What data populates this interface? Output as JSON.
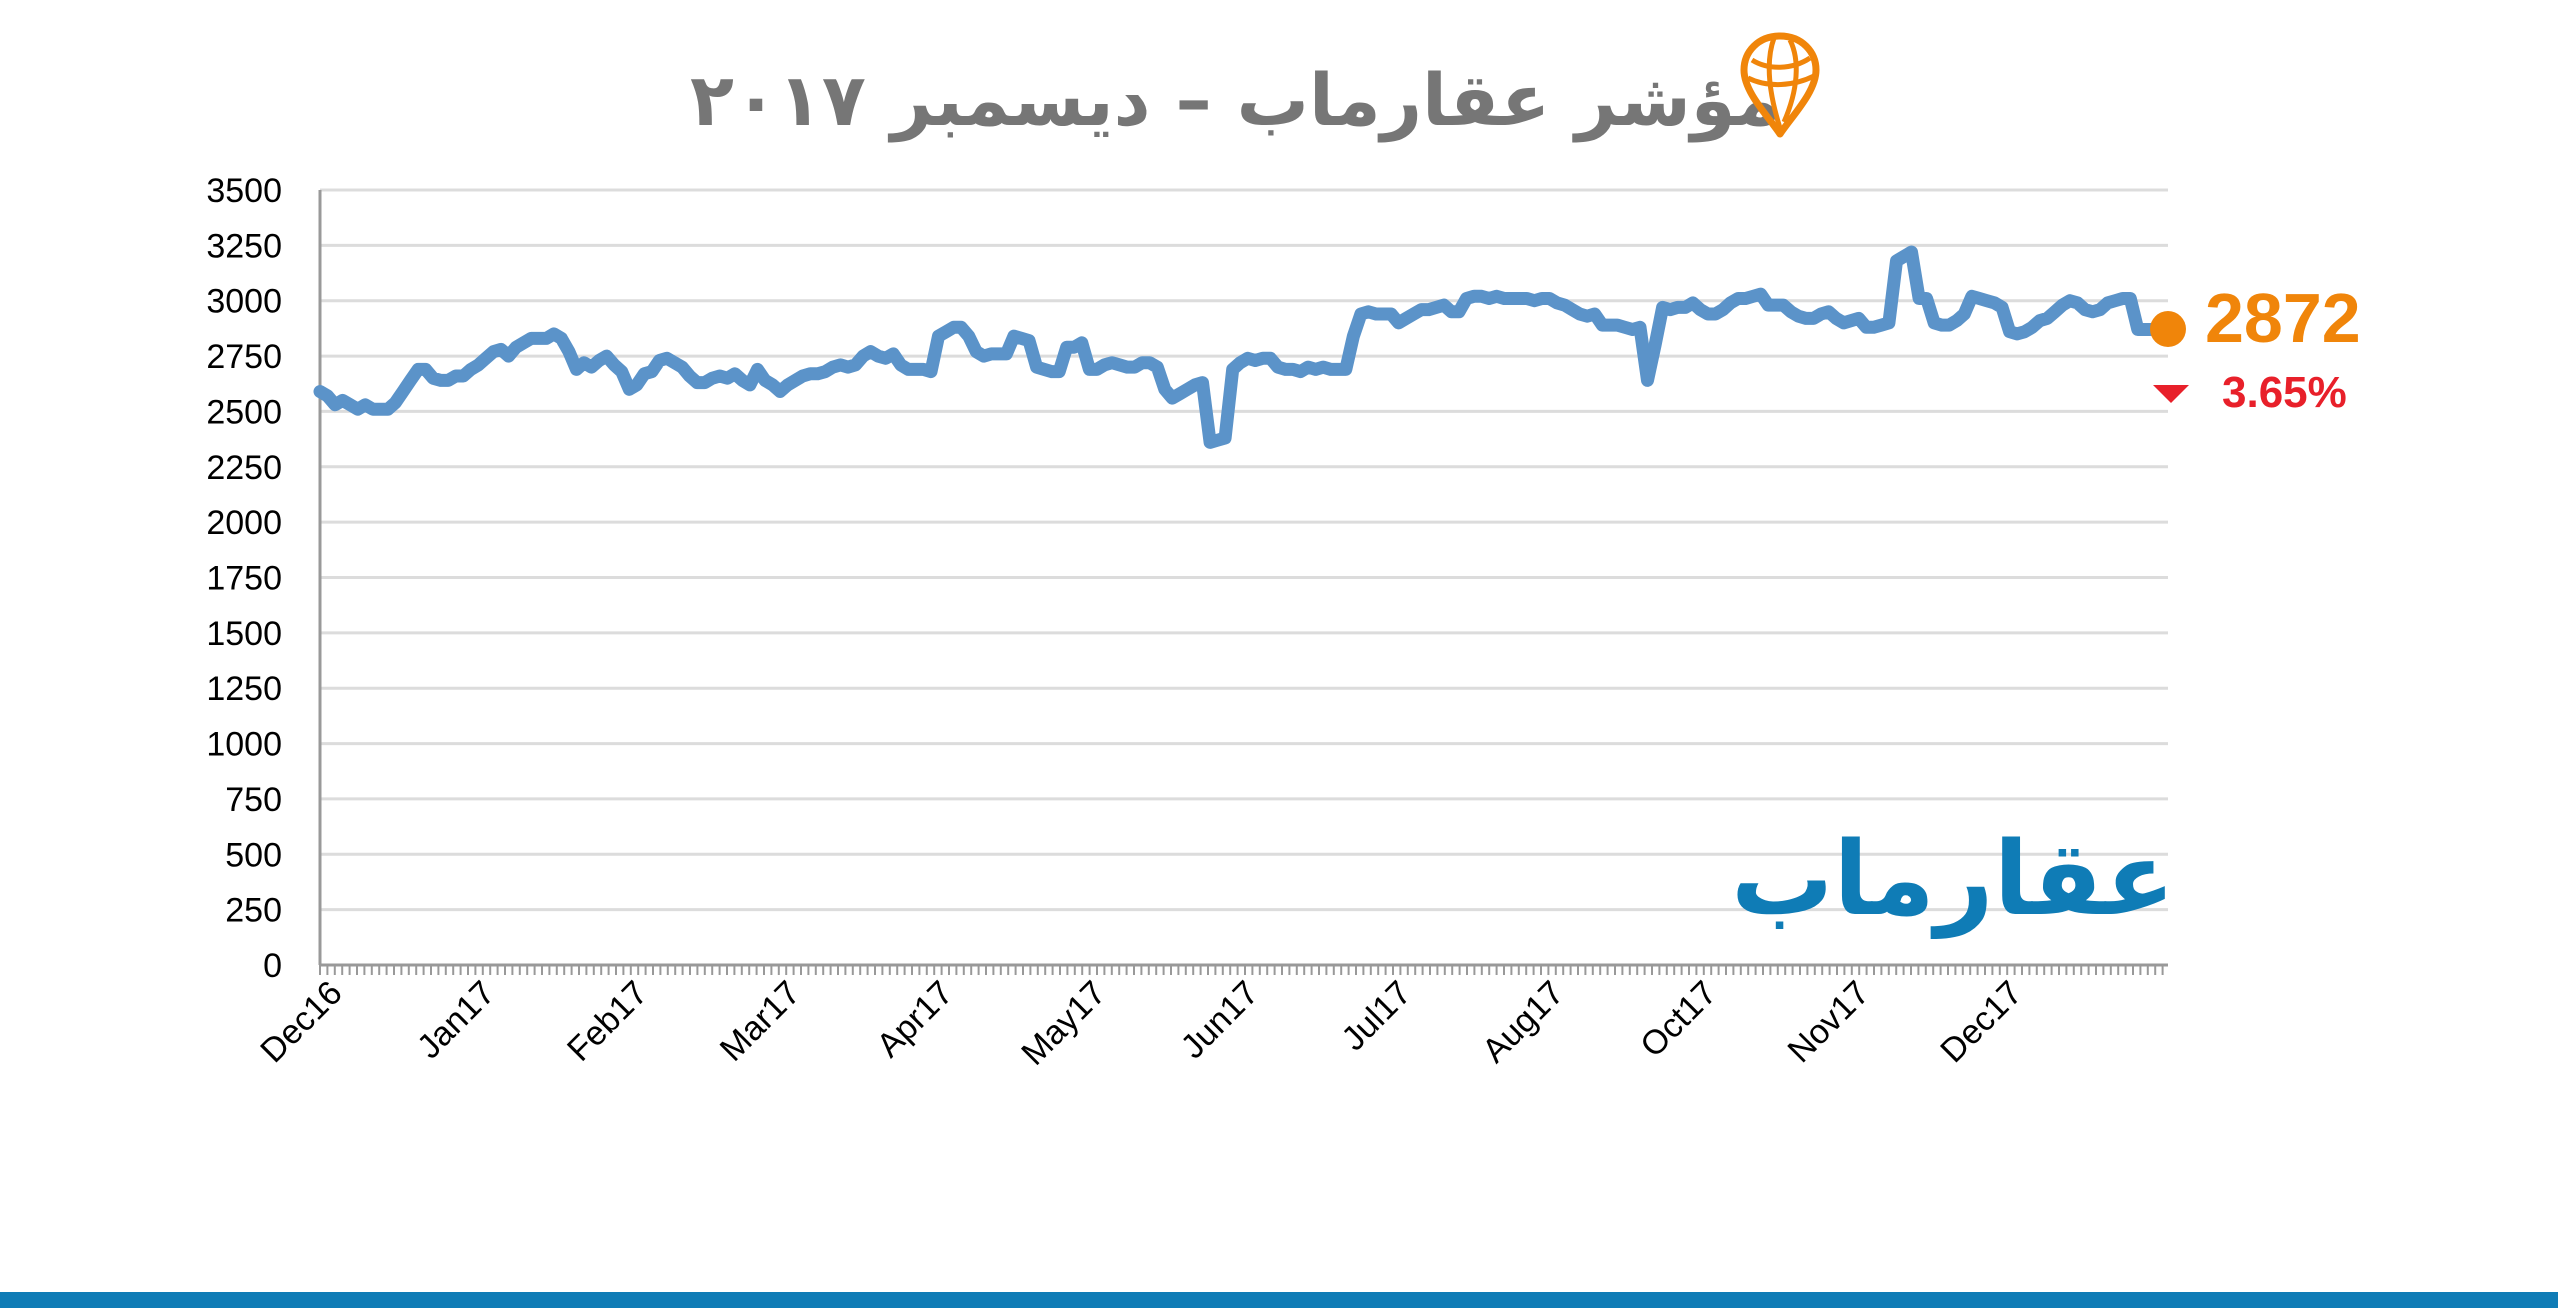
{
  "chart_data": {
    "type": "line",
    "title": "مؤشر عقارماب – ديسمبر ٢٠١٧",
    "xlabel": "",
    "ylabel": "",
    "ylim": [
      0,
      3500
    ],
    "yticks": [
      0,
      250,
      500,
      750,
      1000,
      1250,
      1500,
      1750,
      2000,
      2250,
      2500,
      2750,
      3000,
      3250,
      3500
    ],
    "xtick_labels": [
      "Dec16",
      "Jan17",
      "Feb17",
      "Mar17",
      "Apr17",
      "May17",
      "Jun17",
      "Jul17",
      "Aug17",
      "Oct17",
      "Nov17",
      "Dec17"
    ],
    "grid": true,
    "line_color": "#5b93c9",
    "series": [
      {
        "values": [
          2590,
          2570,
          2530,
          2550,
          2530,
          2510,
          2530,
          2510,
          2510,
          2510,
          2540,
          2590,
          2640,
          2690,
          2690,
          2650,
          2640,
          2640,
          2660,
          2660,
          2690,
          2710,
          2740,
          2770,
          2780,
          2750,
          2790,
          2810,
          2830,
          2830,
          2830,
          2850,
          2830,
          2770,
          2690,
          2720,
          2700,
          2730,
          2750,
          2710,
          2680,
          2600,
          2620,
          2670,
          2680,
          2730,
          2740,
          2720,
          2700,
          2660,
          2630,
          2630,
          2650,
          2660,
          2650,
          2670,
          2640,
          2620,
          2690,
          2640,
          2620,
          2590,
          2620,
          2640,
          2660,
          2670,
          2670,
          2680,
          2700,
          2710,
          2700,
          2710,
          2750,
          2770,
          2750,
          2740,
          2760,
          2710,
          2690,
          2690,
          2690,
          2680,
          2840,
          2860,
          2880,
          2880,
          2840,
          2770,
          2750,
          2760,
          2760,
          2760,
          2840,
          2830,
          2820,
          2700,
          2690,
          2680,
          2680,
          2790,
          2790,
          2810,
          2690,
          2690,
          2710,
          2720,
          2710,
          2700,
          2700,
          2720,
          2720,
          2700,
          2600,
          2560,
          2580,
          2600,
          2620,
          2630,
          2360,
          2370,
          2380,
          2690,
          2720,
          2740,
          2730,
          2740,
          2740,
          2700,
          2690,
          2690,
          2680,
          2700,
          2690,
          2700,
          2690,
          2690,
          2690,
          2840,
          2940,
          2950,
          2940,
          2940,
          2940,
          2900,
          2920,
          2940,
          2960,
          2960,
          2970,
          2980,
          2950,
          2950,
          3010,
          3020,
          3020,
          3010,
          3020,
          3010,
          3010,
          3010,
          3010,
          3000,
          3010,
          3010,
          2990,
          2980,
          2960,
          2940,
          2930,
          2940,
          2890,
          2890,
          2890,
          2880,
          2870,
          2880,
          2640,
          2800,
          2970,
          2960,
          2970,
          2970,
          2990,
          2960,
          2940,
          2940,
          2960,
          2990,
          3010,
          3010,
          3020,
          3030,
          2980,
          2980,
          2980,
          2950,
          2930,
          2920,
          2920,
          2940,
          2950,
          2920,
          2900,
          2910,
          2920,
          2880,
          2880,
          2890,
          2900,
          3180,
          3200,
          3220,
          3010,
          3010,
          2900,
          2890,
          2890,
          2910,
          2940,
          3020,
          3010,
          3000,
          2990,
          2970,
          2860,
          2850,
          2860,
          2880,
          2910,
          2920,
          2950,
          2980,
          3000,
          2990,
          2960,
          2950,
          2960,
          2990,
          3000,
          3010,
          3010,
          2870,
          2870,
          2870,
          2870,
          2872
        ]
      }
    ],
    "annotations": {
      "last_value": "2872",
      "last_value_color": "#f0850a",
      "change": "3.65%",
      "change_color": "#e8202a",
      "change_direction": "down"
    }
  },
  "brand": {
    "wordmark": "عقارماب",
    "logo_icon": "pin-globe-icon",
    "brand_color": "#0f7cb6"
  }
}
